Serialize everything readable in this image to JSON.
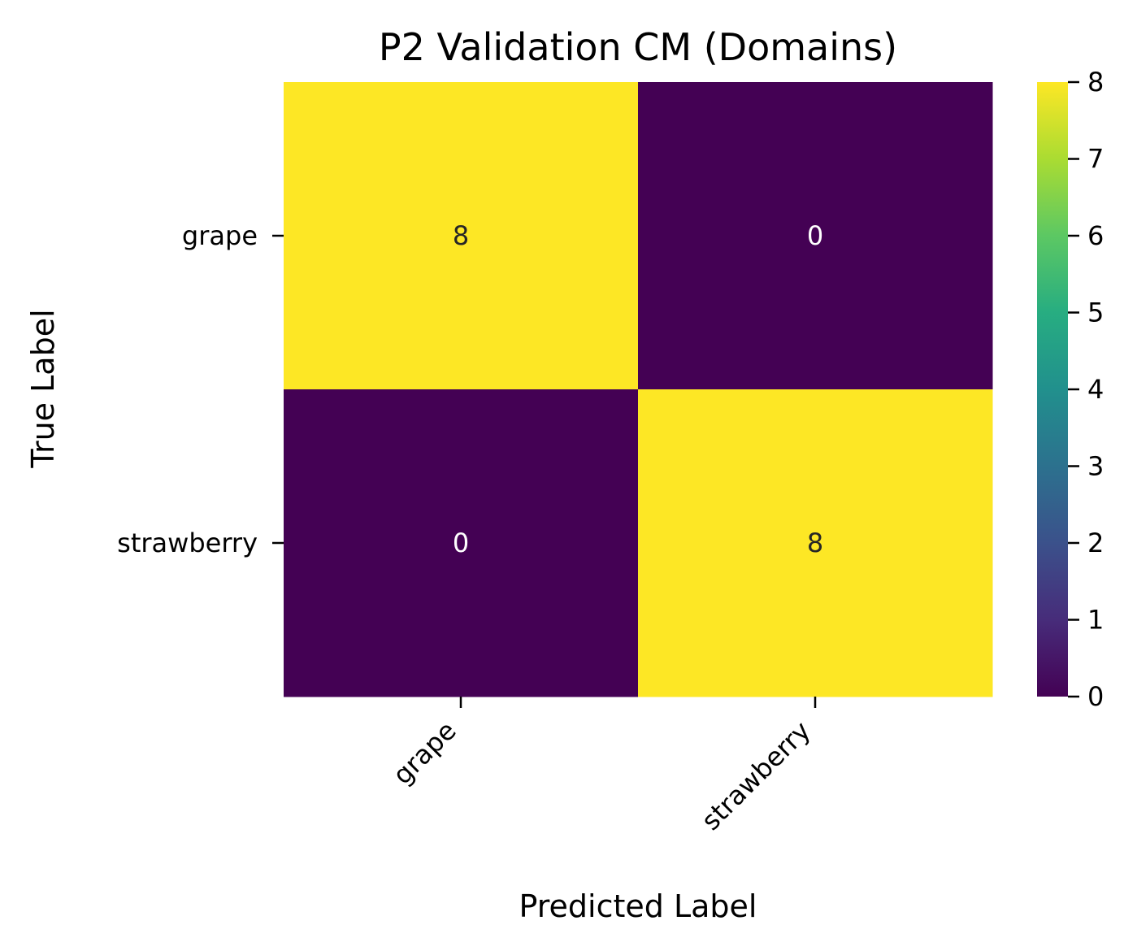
{
  "chart_data": {
    "type": "heatmap",
    "title": "P2 Validation CM (Domains)",
    "xlabel": "Predicted Label",
    "ylabel": "True Label",
    "x_categories": [
      "grape",
      "strawberry"
    ],
    "y_categories": [
      "grape",
      "strawberry"
    ],
    "values": [
      [
        8,
        0
      ],
      [
        0,
        8
      ]
    ],
    "colormap": "viridis",
    "colorbar": {
      "min": 0,
      "max": 8,
      "ticks": [
        0,
        1,
        2,
        3,
        4,
        5,
        6,
        7,
        8
      ],
      "tick_labels": [
        "0",
        "1",
        "2",
        "3",
        "4",
        "5",
        "6",
        "7",
        "8"
      ]
    },
    "colors": {
      "low": "#440154",
      "high": "#fde725",
      "text_on_low": "#ffffff",
      "text_on_high": "#262626"
    }
  }
}
